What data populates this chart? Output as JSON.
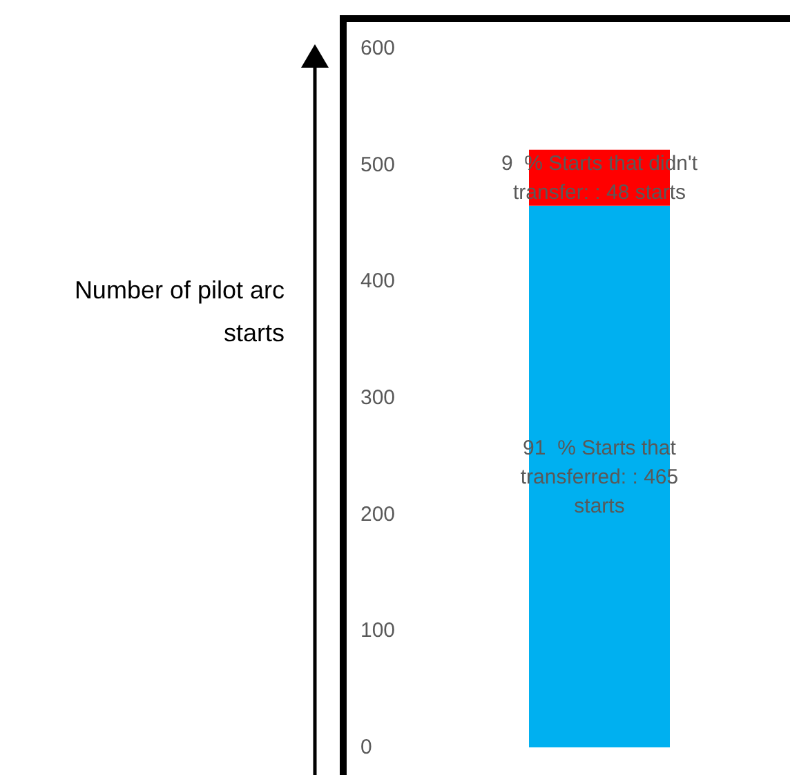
{
  "chart_data": {
    "type": "bar",
    "ylabel": "Number of pilot arc starts",
    "categories": [
      null
    ],
    "stacked": true,
    "ylim": [
      0,
      600
    ],
    "yticks": [
      0,
      100,
      200,
      300,
      400,
      500,
      600
    ],
    "series": [
      {
        "color": "#00b0f0",
        "values": [
          465
        ],
        "value_labels": [
          "91  % Starts that transferred: : 465 starts"
        ]
      },
      {
        "color": "#ff0000",
        "values": [
          48
        ],
        "value_labels": [
          "9  % Starts that didn't transfer: : 48 starts"
        ]
      }
    ]
  }
}
